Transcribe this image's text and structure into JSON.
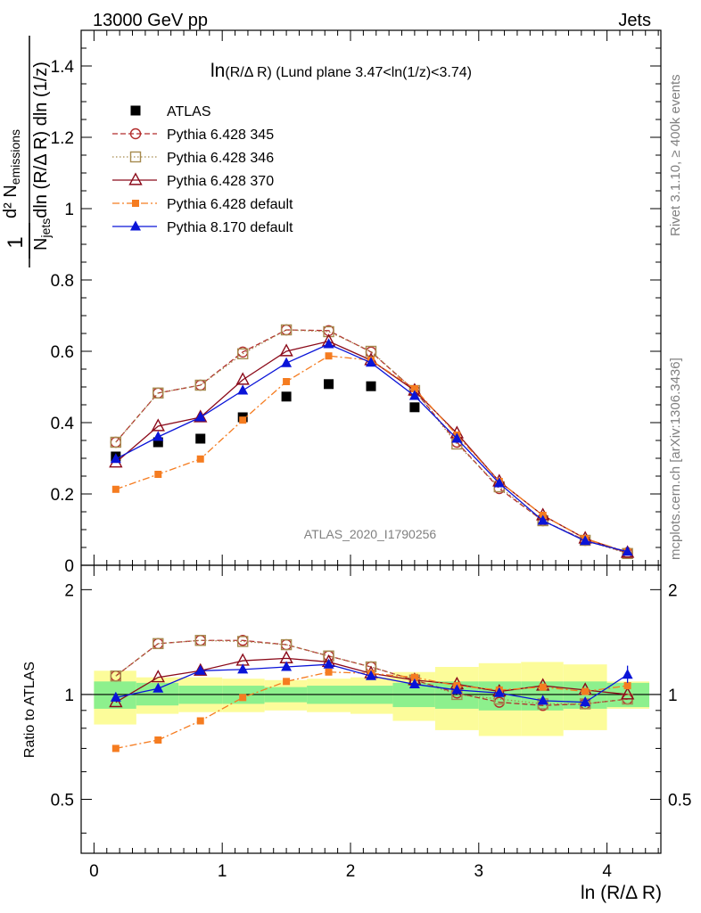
{
  "header": {
    "left": "13000 GeV pp",
    "right": "Jets"
  },
  "side_labels": {
    "rivet": "Rivet 3.1.10, ≥ 400k events",
    "mcplots": "mcplots.cern.ch [arXiv:1306.3436]"
  },
  "watermark": "ATLAS_2020_I1790256",
  "top_ylabel": {
    "num": "d² N",
    "num_sub": "emissions",
    "den_a": "N",
    "den_a_sub": "jets",
    "den_b": "dln (R/Δ R) dln (1/z)",
    "one": "1"
  },
  "bottom_ylabel": "Ratio to ATLAS",
  "xlabel": "ln (R/Δ R)",
  "colors": {
    "atlas": "#000000",
    "p345": "#b22c2c",
    "p346": "#a68a4e",
    "p370": "#8b0a1a",
    "pdef": "#f57c20",
    "p8": "#0a14d8",
    "band_inner": "#8df08d",
    "band_outer": "#fcfc9a"
  },
  "chart_data": [
    {
      "type": "line",
      "title": "ln(R/Δ R) (Lund plane 3.47<ln(1/z)<3.74)",
      "title_main": "ln",
      "title_rest": "(R/Δ R) (Lund plane 3.47<ln(1/z)<3.74)",
      "xlabel": "ln (R/Δ R)",
      "xlim": [
        -0.1,
        4.42
      ],
      "ylim": [
        0,
        1.5
      ],
      "y_ticks": [
        "0",
        "0.2",
        "0.4",
        "0.6",
        "0.8",
        "1",
        "1.2",
        "1.4"
      ],
      "x": [
        0.17,
        0.5,
        0.83,
        1.16,
        1.5,
        1.83,
        2.16,
        2.5,
        2.83,
        3.16,
        3.5,
        3.83,
        4.16
      ],
      "series": [
        {
          "name": "ATLAS",
          "marker": "filled-square",
          "values": [
            0.305,
            0.345,
            0.355,
            0.415,
            0.473,
            0.508,
            0.502,
            0.443,
            null,
            null,
            null,
            null,
            null
          ]
        },
        {
          "name": "Pythia 6.428 345",
          "marker": "open-circle",
          "dash": "dashed",
          "values": [
            0.345,
            0.483,
            0.505,
            0.598,
            0.66,
            0.658,
            0.598,
            0.49,
            0.345,
            0.215,
            0.125,
            0.07,
            0.035
          ]
        },
        {
          "name": "Pythia 6.428 346",
          "marker": "open-square",
          "dash": "dotted",
          "values": [
            0.345,
            0.483,
            0.505,
            0.593,
            0.66,
            0.655,
            0.6,
            0.49,
            0.34,
            0.22,
            0.125,
            0.07,
            0.033
          ]
        },
        {
          "name": "Pythia 6.428 370",
          "marker": "open-triangle",
          "dash": "solid",
          "values": [
            0.288,
            0.39,
            0.415,
            0.52,
            0.6,
            0.628,
            0.575,
            0.49,
            0.37,
            0.235,
            0.14,
            0.075,
            0.035
          ]
        },
        {
          "name": "Pythia 6.428 default",
          "marker": "small-filled-square",
          "dash": "dashdot",
          "values": [
            0.213,
            0.255,
            0.298,
            0.407,
            0.515,
            0.587,
            0.575,
            0.495,
            0.365,
            0.235,
            0.14,
            0.075,
            0.037
          ]
        },
        {
          "name": "Pythia 8.170 default",
          "marker": "filled-triangle",
          "dash": "solid",
          "values": [
            0.298,
            0.36,
            0.415,
            0.49,
            0.567,
            0.62,
            0.568,
            0.475,
            0.355,
            0.23,
            0.125,
            0.068,
            0.038
          ]
        }
      ],
      "legend": "top-left"
    },
    {
      "type": "line",
      "ylabel": "Ratio to ATLAS",
      "xlim": [
        -0.1,
        4.42
      ],
      "ylim": [
        0.35,
        2.35
      ],
      "log_y": true,
      "x_ticks": [
        "0",
        "1",
        "2",
        "3",
        "4"
      ],
      "y_ticks": [
        "0.5",
        "1",
        "2"
      ],
      "bands": {
        "edges": [
          0,
          0.33,
          0.66,
          1.0,
          1.33,
          1.66,
          2.0,
          2.33,
          2.66,
          3.0,
          3.33,
          3.66,
          4.0,
          4.33
        ],
        "inner_low": [
          0.91,
          0.93,
          0.94,
          0.94,
          0.95,
          0.94,
          0.94,
          0.92,
          0.91,
          0.9,
          0.9,
          0.91,
          0.92
        ],
        "inner_high": [
          1.09,
          1.08,
          1.06,
          1.06,
          1.05,
          1.06,
          1.06,
          1.08,
          1.09,
          1.09,
          1.09,
          1.09,
          1.08
        ],
        "outer_low": [
          0.82,
          0.88,
          0.89,
          0.89,
          0.9,
          0.89,
          0.88,
          0.84,
          0.79,
          0.76,
          0.76,
          0.79,
          0.91
        ],
        "outer_high": [
          1.17,
          1.12,
          1.12,
          1.11,
          1.1,
          1.11,
          1.12,
          1.16,
          1.2,
          1.23,
          1.24,
          1.22,
          1.09
        ]
      },
      "x": [
        0.17,
        0.5,
        0.83,
        1.16,
        1.5,
        1.83,
        2.16,
        2.5,
        2.83,
        3.16,
        3.5,
        3.83,
        4.16
      ],
      "series": [
        {
          "name": "Pythia 6.428 345",
          "values": [
            1.13,
            1.4,
            1.43,
            1.43,
            1.39,
            1.29,
            1.2,
            1.1,
            1.01,
            0.95,
            0.93,
            0.94,
            0.97
          ]
        },
        {
          "name": "Pythia 6.428 346",
          "values": [
            1.13,
            1.4,
            1.43,
            1.42,
            1.39,
            1.29,
            1.2,
            1.1,
            1.0,
            0.97,
            0.94,
            0.94,
            0.97
          ]
        },
        {
          "name": "Pythia 6.428 370",
          "values": [
            0.95,
            1.12,
            1.17,
            1.25,
            1.27,
            1.24,
            1.15,
            1.1,
            1.07,
            1.02,
            1.06,
            1.03,
            1.0
          ]
        },
        {
          "name": "Pythia 6.428 default",
          "values": [
            0.7,
            0.74,
            0.84,
            0.98,
            1.09,
            1.16,
            1.15,
            1.12,
            1.06,
            1.03,
            1.05,
            1.02,
            1.06
          ]
        },
        {
          "name": "Pythia 8.170 default",
          "values": [
            0.98,
            1.04,
            1.17,
            1.18,
            1.2,
            1.22,
            1.13,
            1.07,
            1.03,
            1.01,
            0.96,
            0.95,
            1.14
          ]
        }
      ]
    }
  ]
}
